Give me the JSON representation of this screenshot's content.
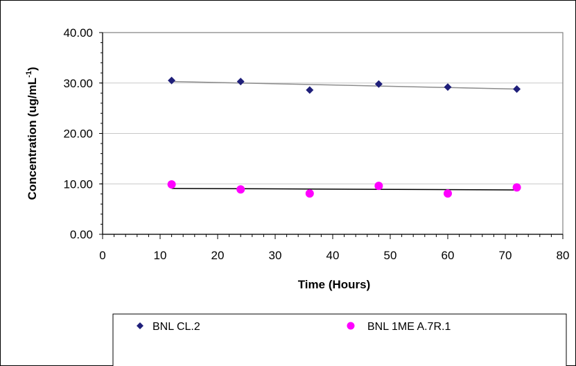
{
  "chart_data": {
    "type": "scatter",
    "title": "",
    "xlabel": "Time (Hours)",
    "ylabel": "Concentration (ug/mL",
    "ylabel_sup": "-1",
    "ylabel_close": ")",
    "xlim": [
      0,
      80
    ],
    "ylim": [
      0,
      40
    ],
    "x_ticks": [
      0,
      10,
      20,
      30,
      40,
      50,
      60,
      70,
      80
    ],
    "y_ticks": [
      0,
      10,
      20,
      30,
      40
    ],
    "x_tick_labels": [
      "0",
      "10",
      "20",
      "30",
      "40",
      "50",
      "60",
      "70",
      "80"
    ],
    "y_tick_labels": [
      "0.00",
      "10.00",
      "20.00",
      "30.00",
      "40.00"
    ],
    "grid": "horizontal major gridlines",
    "legend_position": "bottom",
    "series": [
      {
        "name": "BNL CL.2",
        "marker": "diamond",
        "color": "#1f1f7a",
        "x": [
          12,
          24,
          36,
          48,
          60,
          72
        ],
        "y": [
          30.5,
          30.3,
          28.6,
          29.8,
          29.2,
          28.8
        ],
        "trendline": {
          "color": "#8c8c8c",
          "from": [
            12,
            30.3
          ],
          "to": [
            72,
            28.8
          ]
        }
      },
      {
        "name": "BNL 1ME A.7R.1",
        "marker": "circle",
        "color": "#ff00ff",
        "x": [
          12,
          24,
          36,
          48,
          60,
          72
        ],
        "y": [
          9.9,
          8.9,
          8.1,
          9.6,
          8.1,
          9.3
        ],
        "trendline": {
          "color": "#000000",
          "from": [
            12,
            9.1
          ],
          "to": [
            72,
            8.8
          ]
        }
      }
    ]
  }
}
